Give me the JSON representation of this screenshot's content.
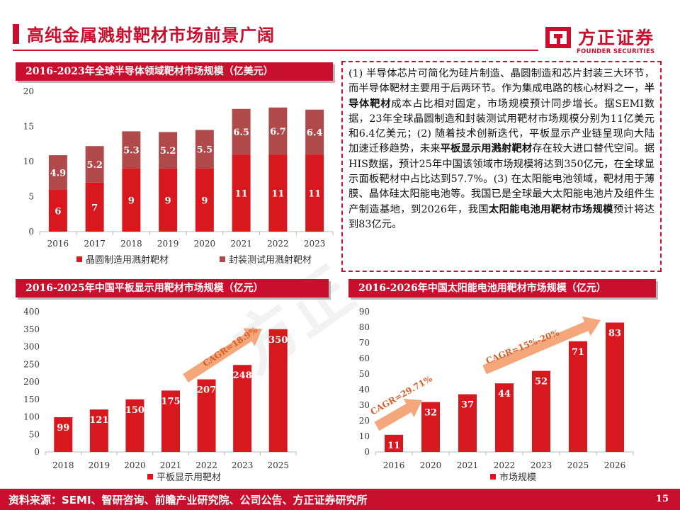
{
  "page": {
    "title": "高纯金属溅射靶材市场前景广阔",
    "page_number": "15",
    "source": "资料来源：SEMI、智研咨询、前瞻产业研究院、公司公告、方正证券研究所",
    "watermark": "方正"
  },
  "logo": {
    "cn": "方正证券",
    "en": "FOUNDER SECURITIES"
  },
  "colors": {
    "primary": "#c8102e",
    "secondary": "#b04a4a",
    "arrow": "#f4a77a"
  },
  "textbox": {
    "p1": "(1) 半导体芯片可简化为硅片制造、晶圆制造和芯片封装三大环节，而半导体靶材主要用于后两环节。作为集成电路的核心材料之一，",
    "b1": "半导体靶材",
    "p2": "成本占比相对固定，市场规模预计同步增长。据SEMI数据，23年全球晶圆制造和封装测试用靶材市场规模分别为11亿美元和6.4亿美元；(2) 随着技术创新迭代，平板显示产业链呈现向大陆加速迁移趋势，未来",
    "b2": "平板显示用溅射靶材",
    "p3": "存在较大进口替代空间。据HIS数据，预计25年中国该领域市场规模将达到350亿元，在全球显示面板靶材中占比达到57.7%。(3) 在太阳能电池领域，靶材用于薄膜、晶体硅太阳能电池等。我国已是全球最大太阳能电池片及组件生产制造基地，到2026年，我国",
    "b3": "太阳能电池用靶材市场规模",
    "p4": "预计将达到83亿元。"
  },
  "chart_data": [
    {
      "id": "chart1",
      "type": "bar",
      "stacked": true,
      "title": "2016-2023年全球半导体领域靶材市场规模（亿美元）",
      "categories": [
        "2016",
        "2017",
        "2018",
        "2019",
        "2020",
        "2021",
        "2022",
        "2023"
      ],
      "series": [
        {
          "name": "晶圆制造用溅射靶材",
          "color": "#d7191f",
          "values": [
            6,
            7,
            9,
            9,
            9,
            11,
            11,
            11
          ]
        },
        {
          "name": "封装测试用溅射靶材",
          "color": "#b04a4a",
          "values": [
            4.9,
            5.2,
            5.3,
            5.2,
            5.5,
            6.5,
            6.7,
            6.4
          ]
        }
      ],
      "ylim": [
        0,
        20
      ],
      "yticks": [
        "0",
        "5",
        "10",
        "15",
        "20"
      ],
      "legend": "bottom"
    },
    {
      "id": "chart2",
      "type": "bar",
      "title": "2016-2025年中国平板显示用靶材市场规模（亿元）",
      "categories": [
        "2018",
        "2019",
        "2020",
        "2021",
        "2022",
        "2023",
        "2025"
      ],
      "series": [
        {
          "name": "平板显示用靶材",
          "color": "#d7191f",
          "values": [
            99,
            121,
            150,
            175,
            207,
            248,
            350
          ]
        }
      ],
      "ylim": [
        0,
        400
      ],
      "yticks": [
        "0",
        "50",
        "100",
        "150",
        "200",
        "250",
        "300",
        "350",
        "400"
      ],
      "annotations": [
        "CAGR=18.9%"
      ],
      "legend": "bottom"
    },
    {
      "id": "chart3",
      "type": "bar",
      "title": "2016-2026年中国太阳能电池用靶材市场规模（亿元）",
      "categories": [
        "2016",
        "2020",
        "2021",
        "2022",
        "2023",
        "2025",
        "2026"
      ],
      "series": [
        {
          "name": "市场规模",
          "color": "#d7191f",
          "values": [
            11,
            32,
            37,
            44,
            52,
            71,
            83
          ]
        }
      ],
      "ylim": [
        0,
        90
      ],
      "yticks": [
        "0",
        "10",
        "20",
        "30",
        "40",
        "50",
        "60",
        "70",
        "80",
        "90"
      ],
      "annotations": [
        "CAGR=29.71%",
        "CAGR=15%-20%"
      ],
      "legend": "bottom"
    }
  ]
}
